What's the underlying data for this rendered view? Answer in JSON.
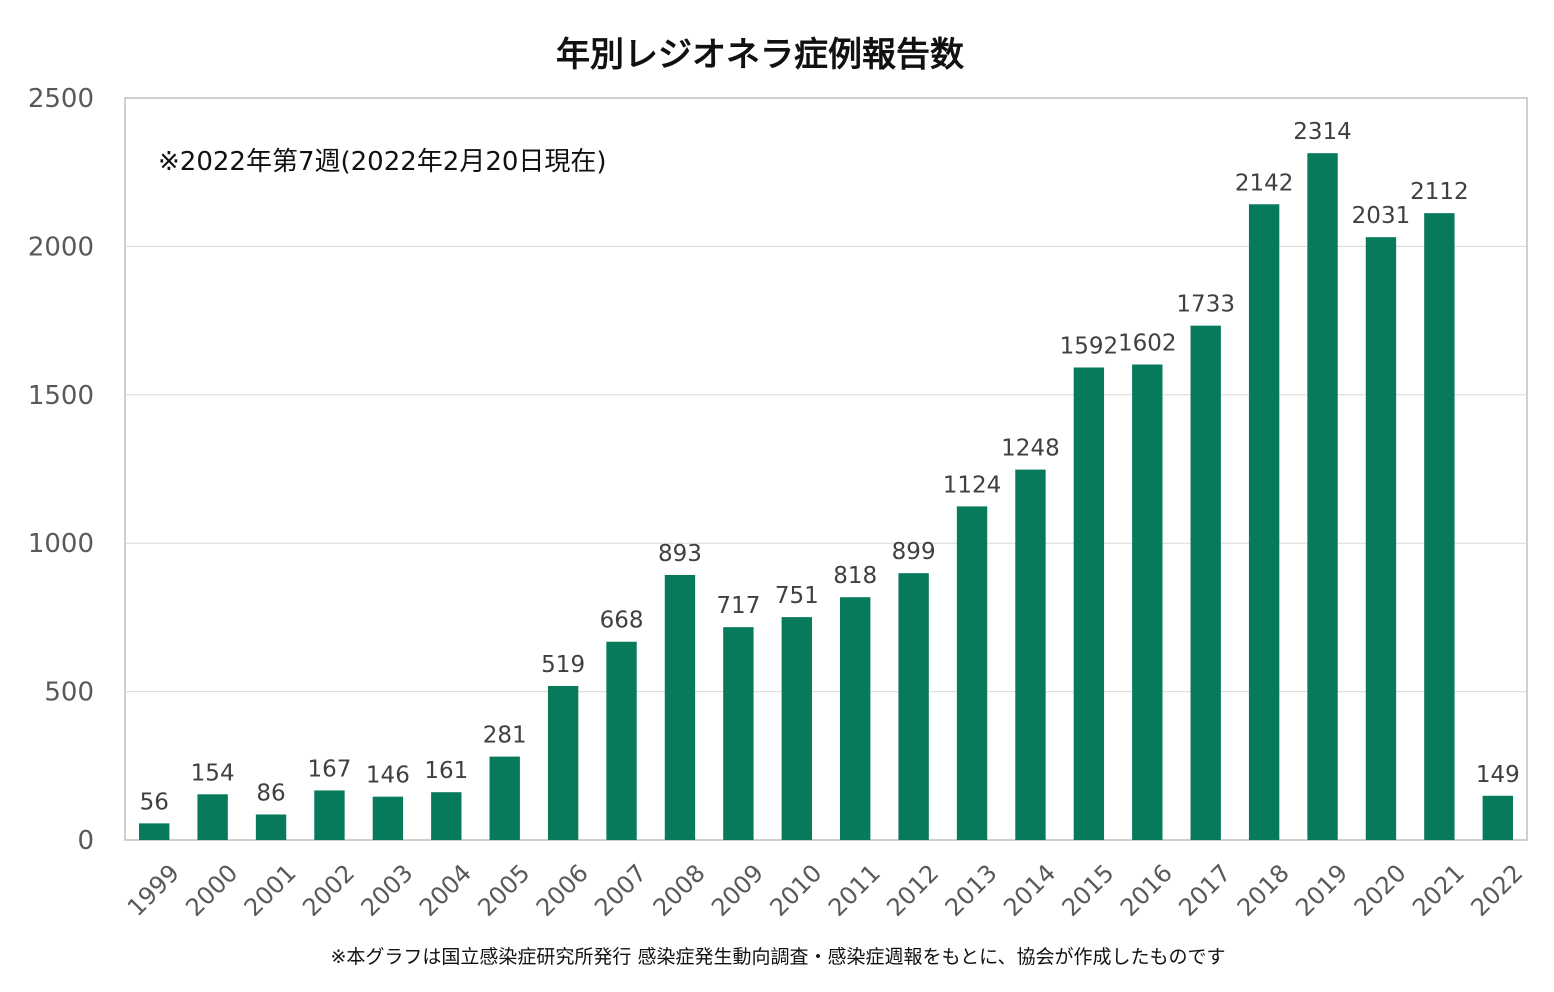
{
  "chart_data": {
    "type": "bar",
    "title": "年別レジオネラ症例報告数",
    "annotation": "※2022年第7週(2022年2月20日現在)",
    "footnote": "※本グラフは国立感染症研究所発行 感染症発生動向調査・感染症週報をもとに、協会が作成したものです",
    "categories": [
      "1999",
      "2000",
      "2001",
      "2002",
      "2003",
      "2004",
      "2005",
      "2006",
      "2007",
      "2008",
      "2009",
      "2010",
      "2011",
      "2012",
      "2013",
      "2014",
      "2015",
      "2016",
      "2017",
      "2018",
      "2019",
      "2020",
      "2021",
      "2022"
    ],
    "values": [
      56,
      154,
      86,
      167,
      146,
      161,
      281,
      519,
      668,
      893,
      717,
      751,
      818,
      899,
      1124,
      1248,
      1592,
      1602,
      1733,
      2142,
      2314,
      2031,
      2112,
      149
    ],
    "ylim": [
      0,
      2500
    ],
    "yticks": [
      "0",
      "500",
      "1000",
      "1500",
      "2000",
      "2500"
    ],
    "xlabel": "",
    "ylabel": "",
    "grid": true,
    "bar_color": "#077A5C",
    "data_labels": true
  }
}
